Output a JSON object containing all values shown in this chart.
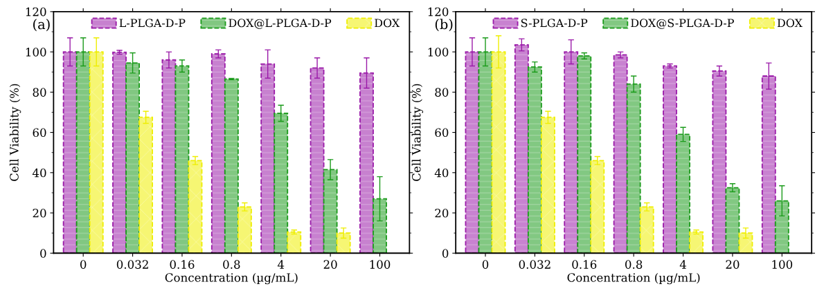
{
  "chart_data": [
    {
      "type": "bar",
      "annotations": [
        "(a)"
      ],
      "xlabel": "Concentration (µg/mL)",
      "ylabel": "Cell Viability (%)",
      "categories": [
        "0",
        "0.032",
        "0.16",
        "0.8",
        "4",
        "20",
        "100"
      ],
      "ylim": [
        0,
        120
      ],
      "yticks": [
        0,
        20,
        40,
        60,
        80,
        100,
        120
      ],
      "legend": "top",
      "grid": false,
      "line_style": "dashed",
      "series": [
        {
          "name": "L-PLGA-D-P",
          "color": "#9a1aa8",
          "values": [
            100,
            99.8,
            96,
            99,
            94,
            92,
            89.5
          ],
          "errors": [
            7,
            1,
            4,
            2,
            7,
            5,
            7.5
          ]
        },
        {
          "name": "DOX@L-PLGA-D-P",
          "color": "#1a9a1a",
          "values": [
            100,
            94.5,
            93,
            86.5,
            69.5,
            41.5,
            27
          ],
          "errors": [
            7,
            5,
            3,
            0.3,
            4,
            5,
            11
          ]
        },
        {
          "name": "DOX",
          "color": "#eeee00",
          "values": [
            100,
            67.5,
            46,
            23,
            10.5,
            10,
            null
          ],
          "errors": [
            7,
            3,
            2,
            2,
            1,
            2.5,
            null
          ]
        }
      ]
    },
    {
      "type": "bar",
      "annotations": [
        "(b)"
      ],
      "xlabel": "Concentration (µg/mL)",
      "ylabel": "Cell Viability (%)",
      "categories": [
        "0",
        "0.032",
        "0.16",
        "0.8",
        "4",
        "20",
        "100"
      ],
      "ylim": [
        0,
        120
      ],
      "yticks": [
        0,
        20,
        40,
        60,
        80,
        100,
        120
      ],
      "legend": "top",
      "grid": false,
      "line_style": "dashed",
      "series": [
        {
          "name": "S-PLGA-D-P",
          "color": "#9b1ba9",
          "values": [
            100,
            103.5,
            100,
            98.5,
            93,
            90.5,
            88
          ],
          "errors": [
            7,
            3,
            6,
            1.5,
            1,
            2.5,
            6.5
          ]
        },
        {
          "name": "DOX@S-PLGA-D-P",
          "color": "#1b9b1b",
          "values": [
            100,
            92.5,
            98,
            84,
            59,
            32.5,
            26
          ],
          "errors": [
            7,
            2.5,
            1.5,
            4,
            3.5,
            2,
            7.5
          ]
        },
        {
          "name": "DOX",
          "color": "#efef01",
          "values": [
            100,
            67.5,
            46,
            23,
            10.5,
            10,
            null
          ],
          "errors": [
            8,
            3,
            2,
            2,
            1,
            2.5,
            null
          ]
        }
      ]
    }
  ]
}
